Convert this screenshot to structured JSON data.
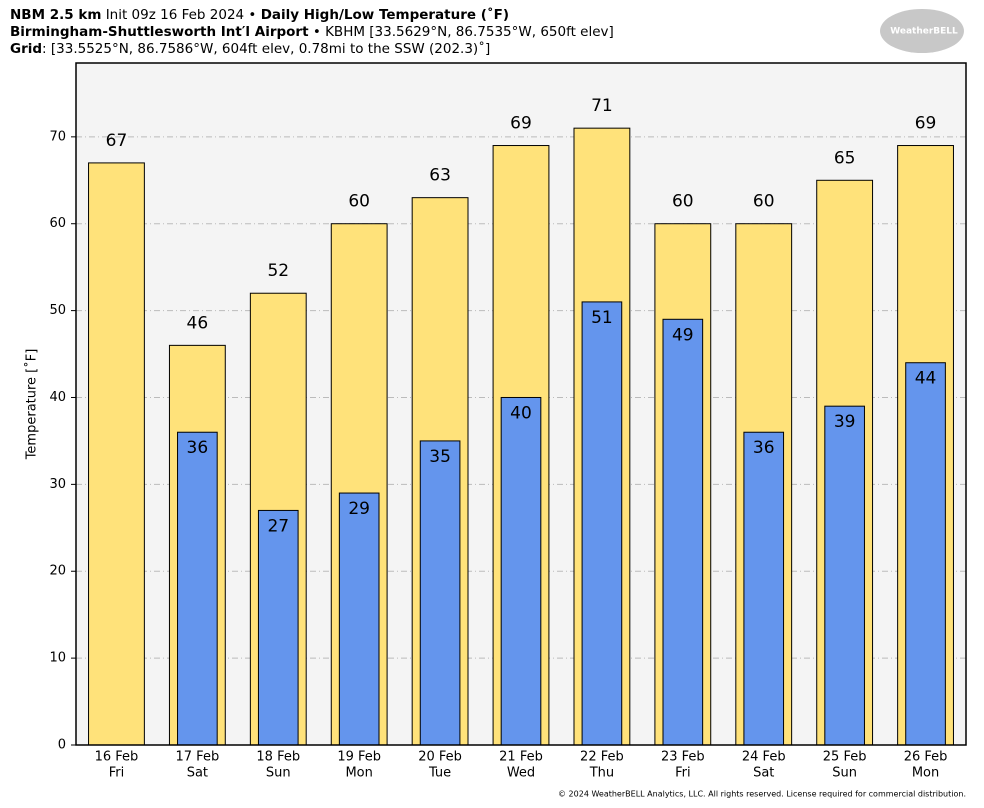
{
  "chart_data": {
    "type": "bar",
    "title_parts": [
      "NBM 2.5 km",
      "Init 09z 16 Feb 2024 •",
      "Daily High/Low Temperature (˚F)"
    ],
    "subtitle_parts": [
      "Birmingham-Shuttlesworth Int′l Airport",
      "• KBHM [33.5629°N, 86.7535°W, 650ft elev]"
    ],
    "grid_parts": [
      "Grid",
      ": [33.5525°N, 86.7586°W, 604ft elev, 0.78mi to the SSW (202.3)˚]"
    ],
    "logo": "WeatherBELL",
    "footer": "© 2024 WeatherBELL Analytics, LLC. All rights reserved. License required for commercial distribution.",
    "y_label": "Temperature [˚F]",
    "categories": [
      "16 Feb",
      "17 Feb",
      "18 Feb",
      "19 Feb",
      "20 Feb",
      "21 Feb",
      "22 Feb",
      "23 Feb",
      "24 Feb",
      "25 Feb",
      "26 Feb"
    ],
    "category_days": [
      "Fri",
      "Sat",
      "Sun",
      "Mon",
      "Tue",
      "Wed",
      "Thu",
      "Fri",
      "Sat",
      "Sun",
      "Mon"
    ],
    "series": [
      {
        "color": "#ffe27a",
        "values": [
          67,
          46,
          52,
          60,
          63,
          69,
          71,
          60,
          60,
          65,
          69
        ]
      },
      {
        "color": "#6495ed",
        "values": [
          null,
          36,
          27,
          29,
          35,
          40,
          51,
          49,
          36,
          39,
          44
        ]
      }
    ],
    "ylim": [
      0,
      78.5
    ],
    "yticks": [
      0,
      10,
      20,
      30,
      40,
      50,
      60,
      70
    ],
    "grid": true
  }
}
